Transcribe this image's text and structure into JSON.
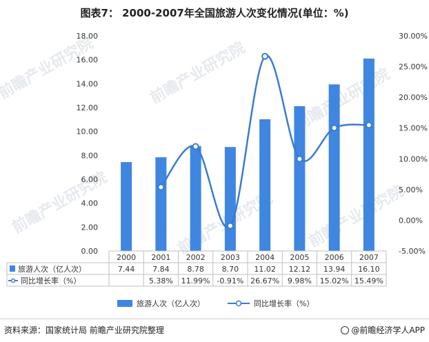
{
  "title": "图表7： 2000-2007年全国旅游人次变化情况(单位：%)",
  "chart_data": {
    "type": "bar+line",
    "categories": [
      "2000",
      "2001",
      "2002",
      "2003",
      "2004",
      "2005",
      "2006",
      "2007"
    ],
    "series": [
      {
        "name": "旅游人次（亿人次）",
        "type": "bar",
        "axis": "left",
        "values": [
          7.44,
          7.84,
          8.78,
          8.7,
          11.02,
          12.12,
          13.94,
          16.1
        ],
        "labels": [
          "7.44",
          "7.84",
          "8.78",
          "8.70",
          "11.02",
          "12.12",
          "13.94",
          "16.10"
        ],
        "color": "#3f86e0"
      },
      {
        "name": "同比增长率（%）",
        "type": "line",
        "axis": "right",
        "values": [
          null,
          5.38,
          11.99,
          -0.91,
          26.67,
          9.98,
          15.02,
          15.49
        ],
        "labels": [
          "",
          "5.38%",
          "11.99%",
          "-0.91%",
          "26.67%",
          "9.98%",
          "15.02%",
          "15.49%"
        ],
        "color": "#3a7bd0"
      }
    ],
    "y_left": {
      "ylim": [
        0,
        18
      ],
      "ticks": [
        "0.00",
        "2.00",
        "4.00",
        "6.00",
        "8.00",
        "10.00",
        "12.00",
        "14.00",
        "16.00",
        "18.00"
      ]
    },
    "y_right": {
      "ylim": [
        -5,
        30
      ],
      "ticks": [
        "-5.00%",
        "0.00%",
        "5.00%",
        "10.00%",
        "15.00%",
        "20.00%",
        "25.00%",
        "30.00%"
      ]
    },
    "legend_position": "bottom",
    "data_table": true
  },
  "watermark": "前瞻产业研究院",
  "source": "资料来源：国家统计局 前瞻产业研究院整理",
  "brand": "@前瞻经济学人APP"
}
